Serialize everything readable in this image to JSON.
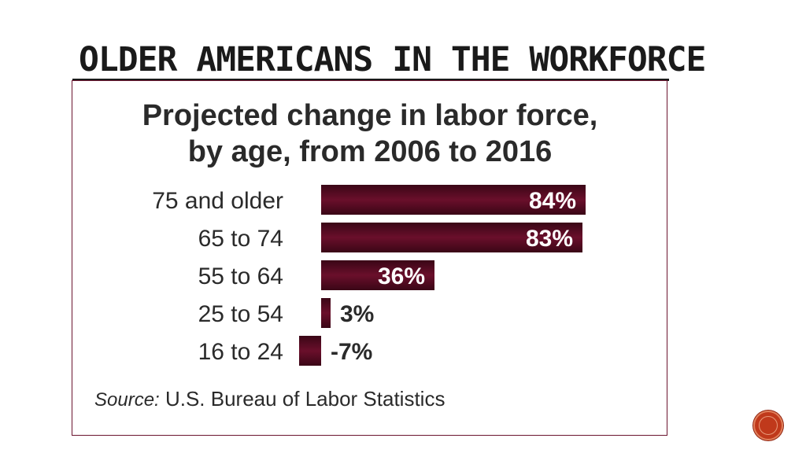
{
  "slide": {
    "title": "OLDER AMERICANS IN THE WORKFORCE"
  },
  "chart_data": {
    "type": "bar",
    "orientation": "horizontal",
    "title_lines": [
      "Projected change in labor force,",
      "by age, from 2006 to 2016"
    ],
    "categories": [
      "75 and older",
      "65 to 74",
      "55 to 64",
      "25 to 54",
      "16 to 24"
    ],
    "values": [
      84,
      83,
      36,
      3,
      -7
    ],
    "value_labels": [
      "84%",
      "83%",
      "36%",
      "3%",
      "-7%"
    ],
    "bar_color": "#5e0b23",
    "grid": false,
    "legend": "none"
  },
  "source": {
    "prefix": "Source:",
    "text": "U.S. Bureau of Labor Statistics"
  },
  "nav": {
    "icon": "next-slide-icon",
    "color": "#c0391b"
  }
}
